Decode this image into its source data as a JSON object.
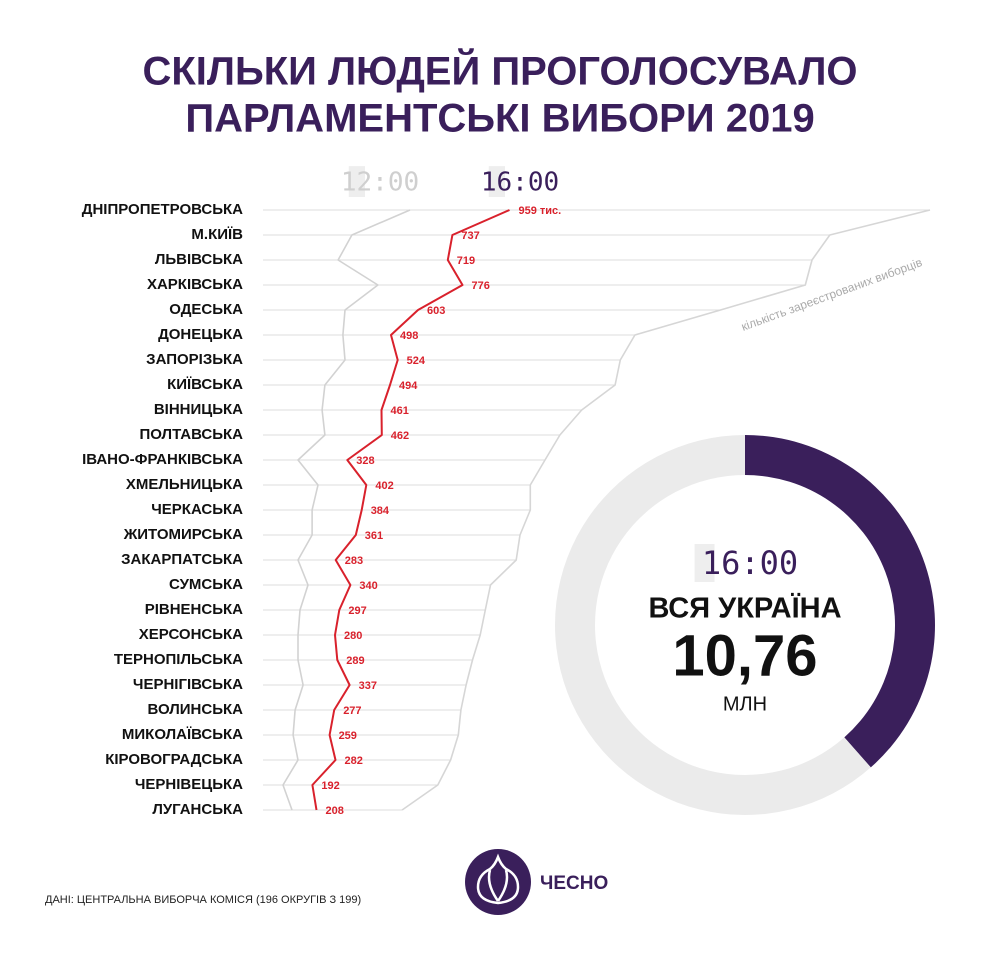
{
  "chart_data": [
    {
      "type": "line",
      "title": [
        "СКІЛЬКИ ЛЮДЕЙ ПРОГОЛОСУВАЛО",
        "ПАРЛАМЕНТСЬКІ ВИБОРИ 2019"
      ],
      "categories": [
        "ДНІПРОПЕТРОВСЬКА",
        "М.КИЇВ",
        "ЛЬВІВСЬКА",
        "ХАРКІВСЬКА",
        "ОДЕСЬКА",
        "ДОНЕЦЬКА",
        "ЗАПОРІЗЬКА",
        "КИЇВСЬКА",
        "ВІННИЦЬКА",
        "ПОЛТАВСЬКА",
        "ІВАНО-ФРАНКІВСЬКА",
        "ХМЕЛЬНИЦЬКА",
        "ЧЕРКАСЬКА",
        "ЖИТОМИРСЬКА",
        "ЗАКАРПАТСЬКА",
        "СУМСЬКА",
        "РІВНЕНСЬКА",
        "ХЕРСОНСЬКА",
        "ТЕРНОПІЛЬСЬКА",
        "ЧЕРНІГІВСЬКА",
        "ВОЛИНСЬКА",
        "МИКОЛАЇВСЬКА",
        "КІРОВОГРАДСЬКА",
        "ЧЕРНІВЕЦЬКА",
        "ЛУГАНСЬКА"
      ],
      "xlim": [
        0,
        2700
      ],
      "series": [
        {
          "name": "кількість зареєстрованих виборців",
          "color": "#d6d6d6",
          "values": [
            2595,
            2205,
            2136,
            2110,
            1780,
            1447,
            1390,
            1370,
            1240,
            1155,
            1097,
            1040,
            1040,
            1000,
            985,
            885,
            865,
            845,
            815,
            790,
            770,
            760,
            730,
            680,
            541
          ]
        },
        {
          "name": "12:00",
          "color": "#d2d2d2",
          "legend_color": "#cfcfcf",
          "values": [
            572,
            346,
            292,
            447,
            319,
            311,
            319,
            241,
            230,
            241,
            136,
            214,
            191,
            191,
            136,
            175,
            144,
            136,
            136,
            156,
            125,
            117,
            136,
            78,
            113
          ]
        },
        {
          "name": "16:00",
          "color": "#d9212c",
          "legend_color": "#3a1f5b",
          "values": [
            959,
            737,
            719,
            776,
            603,
            498,
            524,
            494,
            461,
            462,
            328,
            402,
            384,
            361,
            283,
            340,
            297,
            280,
            289,
            337,
            277,
            259,
            282,
            192,
            208
          ],
          "value_labels": [
            "959 тис.",
            "737",
            "719",
            "776",
            "603",
            "498",
            "524",
            "494",
            "461",
            "462",
            "328",
            "402",
            "384",
            "361",
            "283",
            "340",
            "297",
            "280",
            "289",
            "337",
            "277",
            "259",
            "282",
            "192",
            "208"
          ]
        }
      ]
    },
    {
      "type": "pie",
      "time": "16:00",
      "title": "ВСЯ УКРАЇНА",
      "unit": "МЛН",
      "values": [
        10.76,
        17.2
      ],
      "value_labels": [
        "10,76",
        null
      ],
      "colors": [
        "#3a1f5b",
        "#ebebeb"
      ]
    }
  ],
  "source": "ДАНІ: ЦЕНТРАЛЬНА ВИБОРЧА КОМІСЯ (196 ОКРУГІВ З 199)",
  "logo": "ЧЕСНО"
}
